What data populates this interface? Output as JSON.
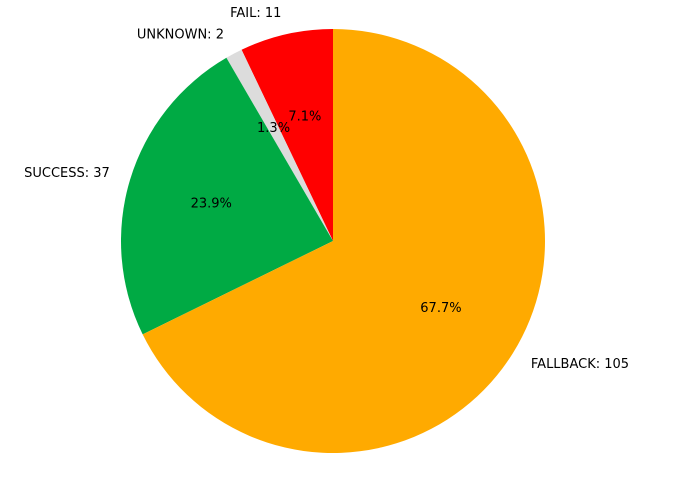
{
  "chart_data": {
    "type": "pie",
    "title": "",
    "start_angle_deg": 90,
    "direction": "counterclockwise",
    "slices": [
      {
        "label": "FAIL: 11",
        "value": 11,
        "percent_label": "7.1%",
        "color": "#ff0000"
      },
      {
        "label": "UNKNOWN: 2",
        "value": 2,
        "percent_label": "1.3%",
        "color": "#dcdcdc"
      },
      {
        "label": "SUCCESS: 37",
        "value": 37,
        "percent_label": "23.9%",
        "color": "#00aa44"
      },
      {
        "label": "FALLBACK: 105",
        "value": 105,
        "percent_label": "67.7%",
        "color": "#ffaa00"
      }
    ]
  }
}
